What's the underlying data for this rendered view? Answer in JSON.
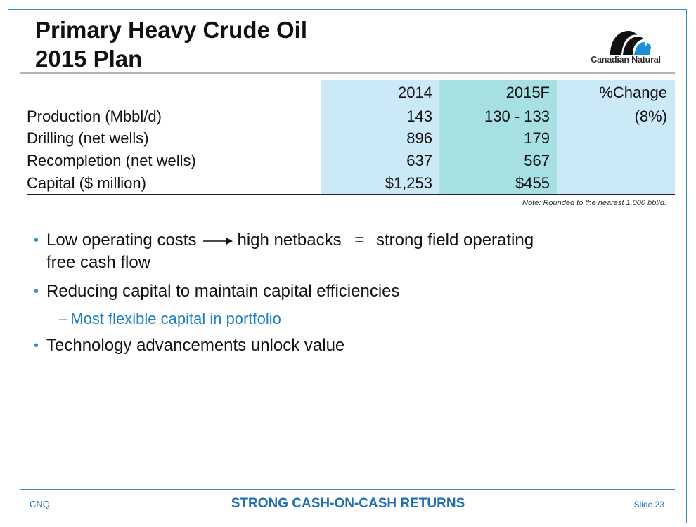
{
  "slide": {
    "title_line1": "Primary Heavy Crude Oil",
    "title_line2": "2015 Plan",
    "logo_text": "Canadian Natural"
  },
  "table": {
    "headers": [
      "",
      "2014",
      "2015F",
      "%Change"
    ],
    "rows": [
      {
        "label": "Production (Mbbl/d)",
        "y2014": "143",
        "y2015": "130 - 133",
        "change": "(8%)"
      },
      {
        "label": "Drilling (net wells)",
        "y2014": "896",
        "y2015": "179",
        "change": ""
      },
      {
        "label": "Recompletion (net wells)",
        "y2014": "637",
        "y2015": "567",
        "change": ""
      },
      {
        "label": "Capital ($ million)",
        "y2014": "$1,253",
        "y2015": "$455",
        "change": ""
      }
    ],
    "note": "Note: Rounded to the nearest 1,000 bbl/d."
  },
  "bullets": {
    "b1_part1": "Low operating costs",
    "b1_part2": "high netbacks",
    "b1_equals": "=",
    "b1_part3": "strong field operating",
    "b1_part4": "free cash flow",
    "b2": "Reducing capital to maintain capital efficiencies",
    "b2_sub_dash": "–",
    "b2_sub": "Most flexible capital in portfolio",
    "b3": "Technology advancements unlock value",
    "bullet_char": "•"
  },
  "footer": {
    "left": "CNQ",
    "center": "STRONG CASH-ON-CASH RETURNS",
    "right": "Slide 23"
  },
  "colors": {
    "accent_blue": "#1f6fb2",
    "col_light": "#cce9f8",
    "col_teal": "#a7e0e3"
  }
}
